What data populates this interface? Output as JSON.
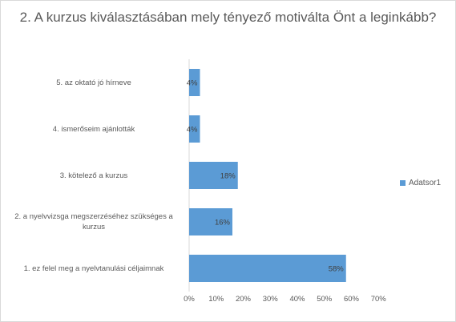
{
  "chart_data": {
    "type": "bar",
    "orientation": "horizontal",
    "title": "2. A kurzus kiválasztásában mely tényező motiválta Önt a leginkább?",
    "categories": [
      "1. ez felel meg a nyelvtanulási céljaimnak",
      "2. a nyelvvizsga megszerzéséhez szükséges a kurzus",
      "3. kötelező a kurzus",
      "4. ismerőseim ajánlották",
      "5. az oktató jó hírneve"
    ],
    "series": [
      {
        "name": "Adatsor1",
        "values": [
          58,
          16,
          18,
          4,
          4
        ],
        "data_labels": [
          "58%",
          "16%",
          "18%",
          "4%",
          "4%"
        ],
        "color": "#5b9bd5"
      }
    ],
    "xlim": [
      0,
      70
    ],
    "x_ticks": [
      "0%",
      "10%",
      "20%",
      "30%",
      "40%",
      "50%",
      "60%",
      "70%"
    ],
    "grid": false,
    "legend": "right"
  }
}
